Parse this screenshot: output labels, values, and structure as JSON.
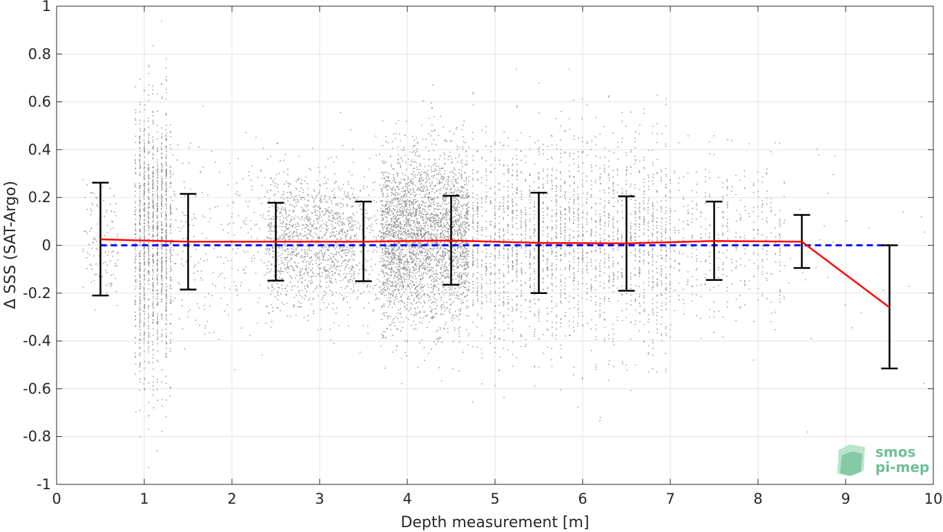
{
  "chart_data": {
    "type": "scatter",
    "xlabel": "Depth measurement [m]",
    "ylabel": "Δ SSS (SAT-Argo)",
    "xlim": [
      0,
      10
    ],
    "ylim": [
      -1,
      1
    ],
    "x_ticks": [
      "0",
      "1",
      "2",
      "3",
      "4",
      "5",
      "6",
      "7",
      "8",
      "9",
      "10"
    ],
    "y_ticks": [
      "1",
      "0.8",
      "0.6",
      "0.4",
      "0.2",
      "0",
      "-0.2",
      "-0.4",
      "-0.6",
      "-0.8",
      "-1"
    ],
    "grid": true,
    "series": [
      {
        "kind": "errorbar-line",
        "color": "#ff0000",
        "x": [
          0.5,
          1.5,
          2.5,
          3.5,
          4.5,
          5.5,
          6.5,
          7.5,
          8.5,
          9.5
        ],
        "mean": [
          0.025,
          0.015,
          0.015,
          0.015,
          0.02,
          0.01,
          0.008,
          0.018,
          0.015,
          -0.26
        ],
        "lower": [
          -0.21,
          -0.185,
          -0.148,
          -0.15,
          -0.165,
          -0.2,
          -0.19,
          -0.145,
          -0.095,
          -0.515
        ],
        "upper": [
          0.262,
          0.215,
          0.178,
          0.183,
          0.207,
          0.22,
          0.205,
          0.183,
          0.127,
          0.0
        ]
      },
      {
        "kind": "reference-line",
        "color": "#0000ff",
        "y": 0,
        "x_range": [
          0.5,
          9.5
        ],
        "style": "dashed"
      }
    ],
    "scatter": {
      "color": "#8c8c8c",
      "description_free": true,
      "clusters": [
        {
          "x": [
            0.3,
            0.7
          ],
          "mean": 0.02,
          "sd": 0.12,
          "n": 120
        },
        {
          "x": [
            0.9,
            1.3
          ],
          "mean": 0.02,
          "sd": 0.28,
          "n": 1400,
          "columnar": true
        },
        {
          "x": [
            1.3,
            2.4
          ],
          "mean": 0.01,
          "sd": 0.2,
          "n": 260
        },
        {
          "x": [
            2.4,
            3.4
          ],
          "mean": 0.02,
          "sd": 0.14,
          "n": 1300
        },
        {
          "x": [
            3.4,
            3.7
          ],
          "mean": 0.01,
          "sd": 0.16,
          "n": 150
        },
        {
          "x": [
            3.7,
            4.7
          ],
          "mean": 0.03,
          "sd": 0.18,
          "n": 3200
        },
        {
          "x": [
            4.7,
            7.0
          ],
          "mean": 0.01,
          "sd": 0.22,
          "n": 2300,
          "columnar": true
        },
        {
          "x": [
            7.0,
            8.3
          ],
          "mean": 0.02,
          "sd": 0.17,
          "n": 420,
          "columnar": true
        },
        {
          "x": [
            8.3,
            10.0
          ],
          "mean": 0.0,
          "sd": 0.25,
          "n": 30
        }
      ]
    }
  },
  "logo": {
    "line1": "smos",
    "line2": "pi-mep"
  }
}
